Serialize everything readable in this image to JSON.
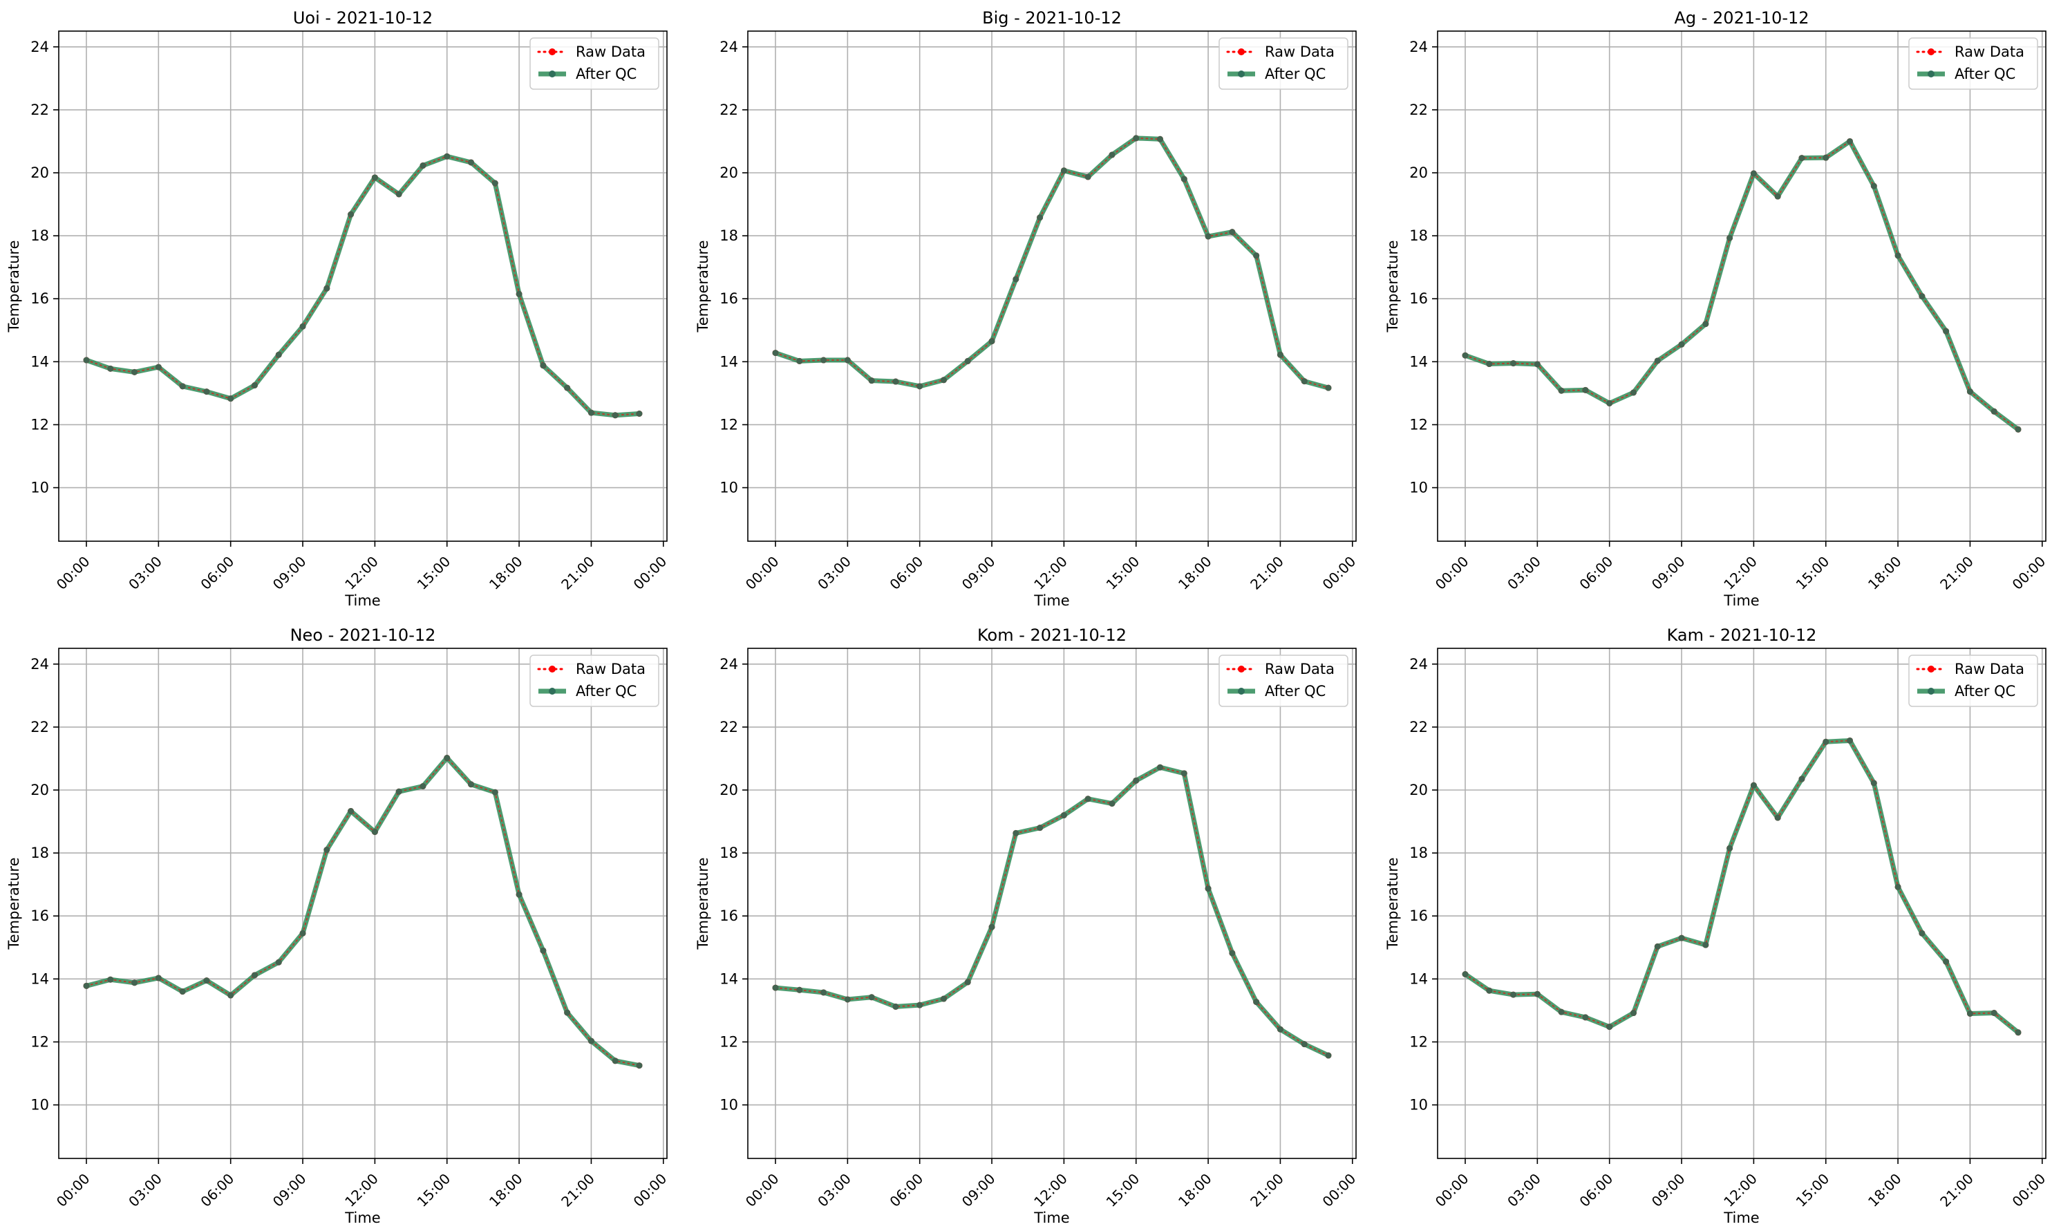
{
  "chart_data": [
    {
      "type": "line",
      "title": "Uoi - 2021-10-12",
      "xlabel": "Time",
      "ylabel": "Temperature",
      "xlim": [
        -1.15,
        24.15
      ],
      "ylim": [
        8.3,
        24.5
      ],
      "xticks": [
        "00:00",
        "03:00",
        "06:00",
        "09:00",
        "12:00",
        "15:00",
        "18:00",
        "21:00",
        "00:00"
      ],
      "yticks": [
        10,
        12,
        14,
        16,
        18,
        20,
        22,
        24
      ],
      "grid": true,
      "legend_position": "top-right",
      "x": [
        0,
        1,
        2,
        3,
        4,
        5,
        6,
        7,
        8,
        9,
        10,
        11,
        12,
        13,
        14,
        15,
        16,
        17,
        18,
        19,
        20,
        21,
        22,
        23
      ],
      "series": [
        {
          "name": "Raw Data",
          "values": [
            14.05,
            13.78,
            13.67,
            13.83,
            13.22,
            13.05,
            12.83,
            13.25,
            14.22,
            15.12,
            16.33,
            18.68,
            19.85,
            19.32,
            20.23,
            20.52,
            20.33,
            19.67,
            16.15,
            13.88,
            13.17,
            12.38,
            12.3,
            12.35
          ]
        },
        {
          "name": "After QC",
          "values": [
            14.05,
            13.78,
            13.67,
            13.83,
            13.22,
            13.05,
            12.83,
            13.25,
            14.22,
            15.12,
            16.33,
            18.68,
            19.85,
            19.32,
            20.23,
            20.52,
            20.33,
            19.67,
            16.15,
            13.88,
            13.17,
            12.38,
            12.3,
            12.35
          ]
        }
      ]
    },
    {
      "type": "line",
      "title": "Big - 2021-10-12",
      "xlabel": "Time",
      "ylabel": "Temperature",
      "xlim": [
        -1.15,
        24.15
      ],
      "ylim": [
        8.3,
        24.5
      ],
      "xticks": [
        "00:00",
        "03:00",
        "06:00",
        "09:00",
        "12:00",
        "15:00",
        "18:00",
        "21:00",
        "00:00"
      ],
      "yticks": [
        10,
        12,
        14,
        16,
        18,
        20,
        22,
        24
      ],
      "grid": true,
      "legend_position": "top-right",
      "x": [
        0,
        1,
        2,
        3,
        4,
        5,
        6,
        7,
        8,
        9,
        10,
        11,
        12,
        13,
        14,
        15,
        16,
        17,
        18,
        19,
        20,
        21,
        22,
        23
      ],
      "series": [
        {
          "name": "Raw Data",
          "values": [
            14.28,
            14.02,
            14.05,
            14.05,
            13.4,
            13.37,
            13.22,
            13.42,
            14.02,
            14.65,
            16.62,
            18.58,
            20.07,
            19.87,
            20.57,
            21.1,
            21.07,
            19.8,
            17.98,
            18.12,
            17.37,
            14.22,
            13.38,
            13.17
          ]
        },
        {
          "name": "After QC",
          "values": [
            14.28,
            14.02,
            14.05,
            14.05,
            13.4,
            13.37,
            13.22,
            13.42,
            14.02,
            14.65,
            16.62,
            18.58,
            20.07,
            19.87,
            20.57,
            21.1,
            21.07,
            19.8,
            17.98,
            18.12,
            17.37,
            14.22,
            13.38,
            13.17
          ]
        }
      ]
    },
    {
      "type": "line",
      "title": "Ag - 2021-10-12",
      "xlabel": "Time",
      "ylabel": "Temperature",
      "xlim": [
        -1.15,
        24.15
      ],
      "ylim": [
        8.3,
        24.5
      ],
      "xticks": [
        "00:00",
        "03:00",
        "06:00",
        "09:00",
        "12:00",
        "15:00",
        "18:00",
        "21:00",
        "00:00"
      ],
      "yticks": [
        10,
        12,
        14,
        16,
        18,
        20,
        22,
        24
      ],
      "grid": true,
      "legend_position": "top-right",
      "x": [
        0,
        1,
        2,
        3,
        4,
        5,
        6,
        7,
        8,
        9,
        10,
        11,
        12,
        13,
        14,
        15,
        16,
        17,
        18,
        19,
        20,
        21,
        22,
        23
      ],
      "series": [
        {
          "name": "Raw Data",
          "values": [
            14.2,
            13.93,
            13.95,
            13.92,
            13.08,
            13.1,
            12.68,
            13.02,
            14.03,
            14.55,
            15.2,
            17.93,
            19.98,
            19.25,
            20.47,
            20.48,
            21.0,
            19.58,
            17.37,
            16.08,
            14.97,
            13.05,
            12.42,
            11.85
          ]
        },
        {
          "name": "After QC",
          "values": [
            14.2,
            13.93,
            13.95,
            13.92,
            13.08,
            13.1,
            12.68,
            13.02,
            14.03,
            14.55,
            15.2,
            17.93,
            19.98,
            19.25,
            20.47,
            20.48,
            21.0,
            19.58,
            17.37,
            16.08,
            14.97,
            13.05,
            12.42,
            11.85
          ]
        }
      ]
    },
    {
      "type": "line",
      "title": "Neo - 2021-10-12",
      "xlabel": "Time",
      "ylabel": "Temperature",
      "xlim": [
        -1.15,
        24.15
      ],
      "ylim": [
        8.3,
        24.5
      ],
      "xticks": [
        "00:00",
        "03:00",
        "06:00",
        "09:00",
        "12:00",
        "15:00",
        "18:00",
        "21:00",
        "00:00"
      ],
      "yticks": [
        10,
        12,
        14,
        16,
        18,
        20,
        22,
        24
      ],
      "grid": true,
      "legend_position": "top-right",
      "x": [
        0,
        1,
        2,
        3,
        4,
        5,
        6,
        7,
        8,
        9,
        10,
        11,
        12,
        13,
        14,
        15,
        16,
        17,
        18,
        19,
        20,
        21,
        22,
        23
      ],
      "series": [
        {
          "name": "Raw Data",
          "values": [
            13.78,
            13.98,
            13.88,
            14.03,
            13.6,
            13.95,
            13.48,
            14.12,
            14.53,
            15.45,
            18.1,
            19.33,
            18.67,
            19.95,
            20.12,
            21.02,
            20.18,
            19.93,
            16.68,
            14.9,
            12.93,
            12.03,
            11.4,
            11.25
          ]
        },
        {
          "name": "After QC",
          "values": [
            13.78,
            13.98,
            13.88,
            14.03,
            13.6,
            13.95,
            13.48,
            14.12,
            14.53,
            15.45,
            18.1,
            19.33,
            18.67,
            19.95,
            20.12,
            21.02,
            20.18,
            19.93,
            16.68,
            14.9,
            12.93,
            12.03,
            11.4,
            11.25
          ]
        }
      ]
    },
    {
      "type": "line",
      "title": "Kom - 2021-10-12",
      "xlabel": "Time",
      "ylabel": "Temperature",
      "xlim": [
        -1.15,
        24.15
      ],
      "ylim": [
        8.3,
        24.5
      ],
      "xticks": [
        "00:00",
        "03:00",
        "06:00",
        "09:00",
        "12:00",
        "15:00",
        "18:00",
        "21:00",
        "00:00"
      ],
      "yticks": [
        10,
        12,
        14,
        16,
        18,
        20,
        22,
        24
      ],
      "grid": true,
      "legend_position": "top-right",
      "x": [
        0,
        1,
        2,
        3,
        4,
        5,
        6,
        7,
        8,
        9,
        10,
        11,
        12,
        13,
        14,
        15,
        16,
        17,
        18,
        19,
        20,
        21,
        22,
        23
      ],
      "series": [
        {
          "name": "Raw Data",
          "values": [
            13.72,
            13.65,
            13.57,
            13.35,
            13.42,
            13.12,
            13.17,
            13.37,
            13.9,
            15.65,
            18.63,
            18.8,
            19.2,
            19.72,
            19.57,
            20.3,
            20.72,
            20.53,
            16.87,
            14.82,
            13.27,
            12.4,
            11.93,
            11.57
          ]
        },
        {
          "name": "After QC",
          "values": [
            13.72,
            13.65,
            13.57,
            13.35,
            13.42,
            13.12,
            13.17,
            13.37,
            13.9,
            15.65,
            18.63,
            18.8,
            19.2,
            19.72,
            19.57,
            20.3,
            20.72,
            20.53,
            16.87,
            14.82,
            13.27,
            12.4,
            11.93,
            11.57
          ]
        }
      ]
    },
    {
      "type": "line",
      "title": "Kam - 2021-10-12",
      "xlabel": "Time",
      "ylabel": "Temperature",
      "xlim": [
        -1.15,
        24.15
      ],
      "ylim": [
        8.3,
        24.5
      ],
      "xticks": [
        "00:00",
        "03:00",
        "06:00",
        "09:00",
        "12:00",
        "15:00",
        "18:00",
        "21:00",
        "00:00"
      ],
      "yticks": [
        10,
        12,
        14,
        16,
        18,
        20,
        22,
        24
      ],
      "grid": true,
      "legend_position": "top-right",
      "x": [
        0,
        1,
        2,
        3,
        4,
        5,
        6,
        7,
        8,
        9,
        10,
        11,
        12,
        13,
        14,
        15,
        16,
        17,
        18,
        19,
        20,
        21,
        22,
        23
      ],
      "series": [
        {
          "name": "Raw Data",
          "values": [
            14.15,
            13.63,
            13.5,
            13.52,
            12.95,
            12.78,
            12.48,
            12.92,
            15.03,
            15.3,
            15.08,
            18.15,
            20.15,
            19.12,
            20.35,
            21.53,
            21.57,
            20.22,
            16.92,
            15.45,
            14.55,
            12.9,
            12.92,
            12.3
          ]
        },
        {
          "name": "After QC",
          "values": [
            14.15,
            13.63,
            13.5,
            13.52,
            12.95,
            12.78,
            12.48,
            12.92,
            15.03,
            15.3,
            15.08,
            18.15,
            20.15,
            19.12,
            20.35,
            21.53,
            21.57,
            20.22,
            16.92,
            15.45,
            14.55,
            12.9,
            12.92,
            12.3
          ]
        }
      ]
    }
  ],
  "colors": {
    "raw": "#ff0000",
    "qc": "#2e8b57",
    "qc_marker": "#2f6f5a",
    "grid": "#b0b0b0",
    "axis": "#000000"
  }
}
